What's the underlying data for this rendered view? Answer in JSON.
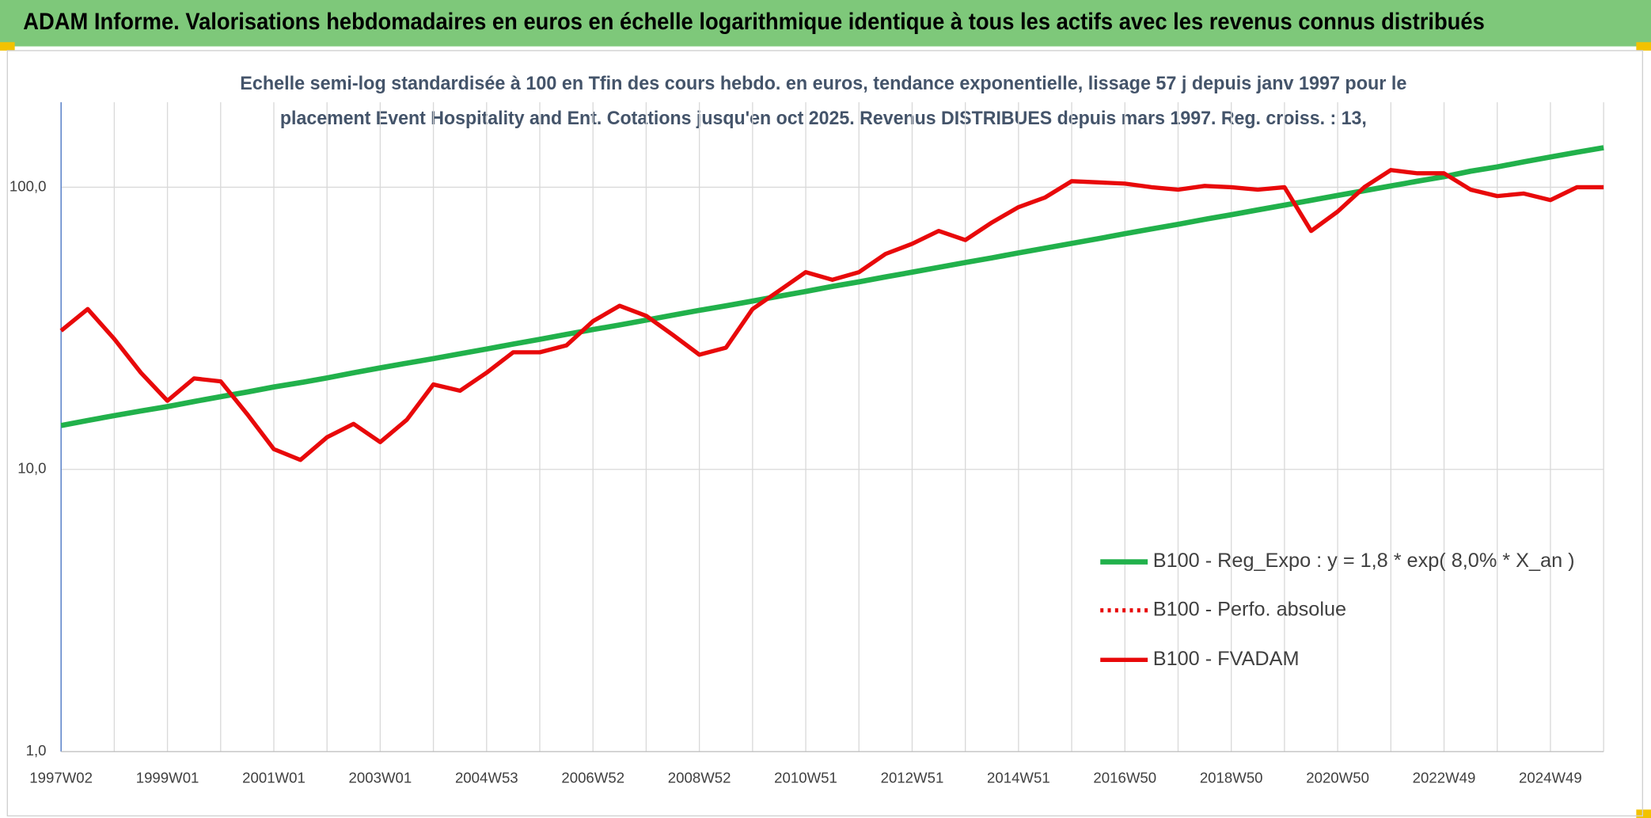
{
  "chart_data": {
    "type": "line",
    "title": "ADAM Informe. Valorisations hebdomadaires en euros en échelle logarithmique identique à tous les actifs avec les revenus connus distribués",
    "subtitle": [
      "Echelle semi-log standardisée à 100 en Tfin des cours hebdo. en euros, tendance exponentielle, lissage 57 j depuis janv 1997 pour le",
      "placement Event Hospitality and Ent. Cotations jusqu'en oct 2025. Revenus DISTRIBUES depuis mars 1997. Reg. croiss. : 13,"
    ],
    "log_scale": true,
    "grid": true,
    "legend": "right",
    "ylim": [
      1,
      200
    ],
    "yticks": [
      {
        "value": 1,
        "label": "1,0"
      },
      {
        "value": 10,
        "label": "10,0"
      },
      {
        "value": 100,
        "label": "100,0"
      }
    ],
    "categories": [
      "1997W02",
      null,
      null,
      null,
      "1999W01",
      null,
      null,
      null,
      "2001W01",
      null,
      null,
      null,
      "2003W01",
      null,
      null,
      null,
      "2004W53",
      null,
      null,
      null,
      "2006W52",
      null,
      null,
      null,
      "2008W52",
      null,
      null,
      null,
      "2010W51",
      null,
      null,
      null,
      "2012W51",
      null,
      null,
      null,
      "2014W51",
      null,
      null,
      null,
      "2016W50",
      null,
      null,
      null,
      "2018W50",
      null,
      null,
      null,
      "2020W50",
      null,
      null,
      null,
      "2022W49",
      null,
      null,
      null,
      "2024W49",
      null,
      null
    ],
    "series": [
      {
        "name": "B100 - Reg_Expo : y = 1,8 * exp( 8,0% *  X_an )",
        "color": "#21b14b",
        "style": "solid",
        "values": [
          14.3,
          14.9,
          15.5,
          16.1,
          16.7,
          17.4,
          18.1,
          18.8,
          19.6,
          20.3,
          21.1,
          22.0,
          22.9,
          23.8,
          24.7,
          25.7,
          26.7,
          27.8,
          28.9,
          30.1,
          31.3,
          32.5,
          33.8,
          35.2,
          36.6,
          38.0,
          39.5,
          41.1,
          42.7,
          44.5,
          46.2,
          48.1,
          50.0,
          52.0,
          54.1,
          56.2,
          58.5,
          60.8,
          63.2,
          65.7,
          68.4,
          71.1,
          73.9,
          76.9,
          79.9,
          83.1,
          86.4,
          89.9,
          93.5,
          97.2,
          101,
          105,
          109,
          114,
          118,
          123,
          128,
          133,
          138
        ]
      },
      {
        "name": "B100 - Perfo. absolue",
        "color": "#e8090a",
        "style": "dotted",
        "values": [
          null,
          null,
          null,
          null,
          null,
          null,
          null,
          null,
          null,
          null,
          null,
          null,
          null,
          null,
          null,
          null,
          null,
          null,
          null,
          null,
          null,
          null,
          null,
          null,
          null,
          null,
          null,
          null,
          null,
          null,
          null,
          null,
          null,
          null,
          null,
          null,
          null,
          null,
          null,
          null,
          null,
          null,
          null,
          null,
          null,
          null,
          null,
          null,
          null,
          null,
          null,
          null,
          null,
          null,
          null,
          null,
          null,
          null,
          null
        ]
      },
      {
        "name": "B100 - FVADAM",
        "color": "#e8090a",
        "style": "solid",
        "values": [
          31,
          37,
          29,
          22,
          17.5,
          21,
          20.5,
          15.7,
          11.8,
          10.8,
          13,
          14.5,
          12.5,
          15,
          20,
          19,
          22,
          26,
          26,
          27.5,
          33.5,
          38,
          35,
          30,
          25.5,
          27,
          37,
          43,
          50,
          47,
          50,
          58,
          63,
          70,
          65,
          75,
          85,
          92,
          105,
          104,
          103,
          100,
          98,
          101,
          100,
          98,
          100,
          70,
          82,
          100,
          115,
          112,
          112,
          98,
          93,
          95,
          90,
          100,
          100
        ]
      }
    ]
  }
}
